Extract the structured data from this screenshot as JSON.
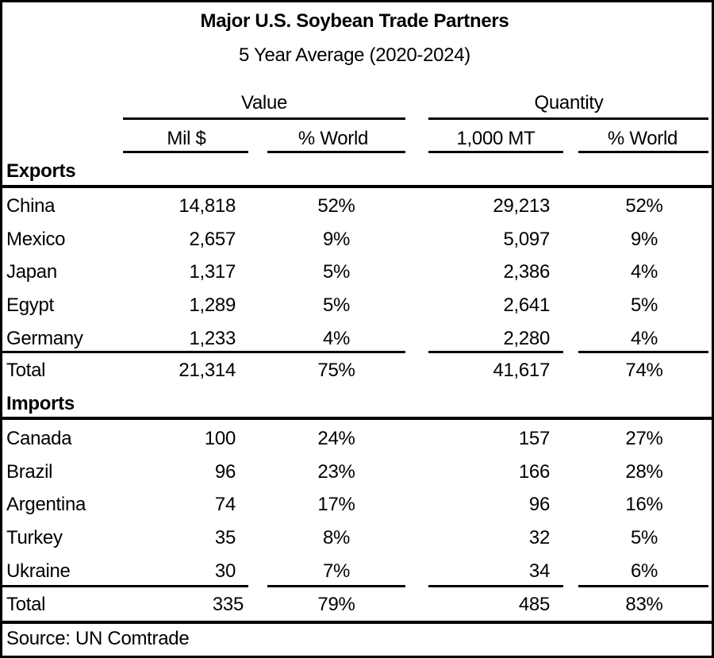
{
  "title": "Major U.S. Soybean Trade Partners",
  "subtitle": "5 Year Average (2020-2024)",
  "groups": {
    "value": "Value",
    "quantity": "Quantity"
  },
  "columns": {
    "mil": "Mil $",
    "pct_value": "% World",
    "mt": "1,000 MT",
    "pct_qty": "% World"
  },
  "exports": {
    "label": "Exports",
    "rows": [
      [
        "China",
        "14,818",
        "52%",
        "29,213",
        "52%"
      ],
      [
        "Mexico",
        "2,657",
        "9%",
        "5,097",
        "9%"
      ],
      [
        "Japan",
        "1,317",
        "5%",
        "2,386",
        "4%"
      ],
      [
        "Egypt",
        "1,289",
        "5%",
        "2,641",
        "5%"
      ],
      [
        "Germany",
        "1,233",
        "4%",
        "2,280",
        "4%"
      ]
    ],
    "total": [
      "Total",
      "21,314",
      "75%",
      "41,617",
      "74%"
    ]
  },
  "imports": {
    "label": "Imports",
    "rows": [
      [
        "Canada",
        "100",
        "24%",
        "157",
        "27%"
      ],
      [
        "Brazil",
        "96",
        "23%",
        "166",
        "28%"
      ],
      [
        "Argentina",
        "74",
        "17%",
        "96",
        "16%"
      ],
      [
        "Turkey",
        "35",
        "8%",
        "32",
        "5%"
      ],
      [
        "Ukraine",
        "30",
        "7%",
        "34",
        "6%"
      ]
    ],
    "total": [
      "Total",
      "335",
      "79%",
      "485",
      "83%"
    ]
  },
  "source": "Source: UN Comtrade"
}
